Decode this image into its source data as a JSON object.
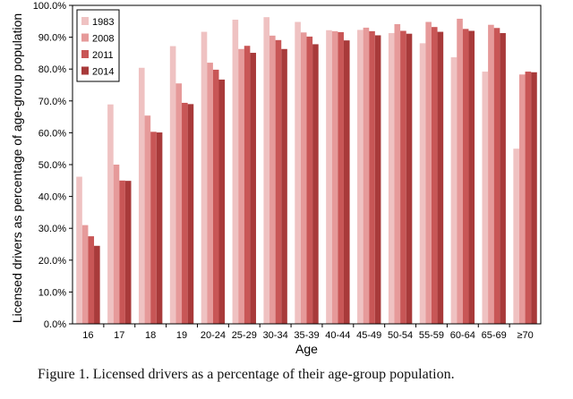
{
  "caption": "Figure 1.  Licensed drivers as a percentage of their age-group population.",
  "chart_data": {
    "type": "bar",
    "xlabel": "Age",
    "ylabel": "Licensed drivers as percentage of age-group population",
    "ylim": [
      0,
      100
    ],
    "ytick_step": 10,
    "ytick_format": "percent_1dp",
    "legend_position": "top-left",
    "categories": [
      "16",
      "17",
      "18",
      "19",
      "20-24",
      "25-29",
      "30-34",
      "35-39",
      "40-44",
      "45-49",
      "50-54",
      "55-59",
      "60-64",
      "65-69",
      "≥70"
    ],
    "series": [
      {
        "name": "1983",
        "color": "#efc2c2",
        "values": [
          46.2,
          68.9,
          80.4,
          87.2,
          91.7,
          95.5,
          96.3,
          94.8,
          92.2,
          92.3,
          91.3,
          88.1,
          83.7,
          79.2,
          55.0
        ]
      },
      {
        "name": "2008",
        "color": "#e69a9a",
        "values": [
          31.0,
          50.0,
          65.4,
          75.5,
          82.0,
          86.3,
          90.5,
          91.5,
          91.9,
          93.0,
          94.1,
          94.8,
          95.8,
          93.9,
          78.3
        ]
      },
      {
        "name": "2011",
        "color": "#c85656",
        "values": [
          27.5,
          45.0,
          60.3,
          69.4,
          79.8,
          87.3,
          89.1,
          90.2,
          91.6,
          91.9,
          92.0,
          93.2,
          92.6,
          92.9,
          79.2
        ]
      },
      {
        "name": "2014",
        "color": "#a83a3a",
        "values": [
          24.5,
          44.9,
          60.1,
          69.0,
          76.7,
          85.1,
          86.3,
          87.8,
          89.0,
          90.6,
          91.1,
          91.7,
          92.0,
          91.3,
          79.0
        ]
      }
    ]
  }
}
